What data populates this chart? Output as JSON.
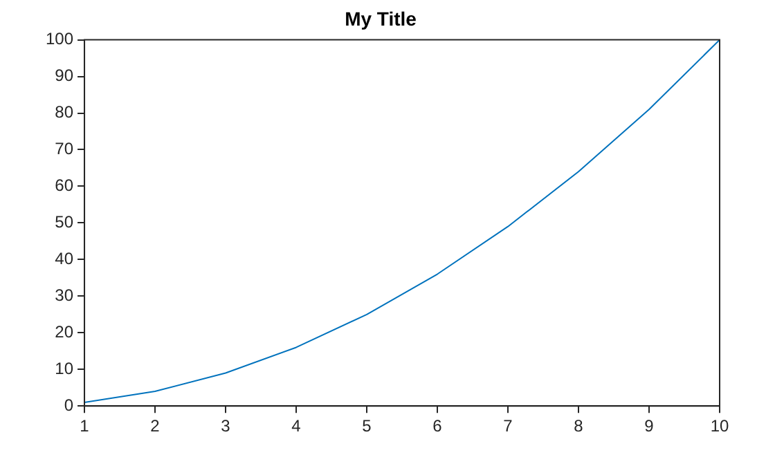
{
  "chart_data": {
    "type": "line",
    "title": "My Title",
    "x": [
      1,
      2,
      3,
      4,
      5,
      6,
      7,
      8,
      9,
      10
    ],
    "series": [
      {
        "color": "#0072bd",
        "values": [
          1,
          4,
          9,
          16,
          25,
          36,
          49,
          64,
          81,
          100
        ]
      }
    ],
    "xlim": [
      1,
      10
    ],
    "xticks": [
      1,
      2,
      3,
      4,
      5,
      6,
      7,
      8,
      9,
      10
    ],
    "ylim": [
      0,
      100
    ],
    "yticks": [
      0,
      10,
      20,
      30,
      40,
      50,
      60,
      70,
      80,
      90,
      100
    ],
    "grid": false,
    "legend": false,
    "marker": "none",
    "line_style": "solid"
  }
}
